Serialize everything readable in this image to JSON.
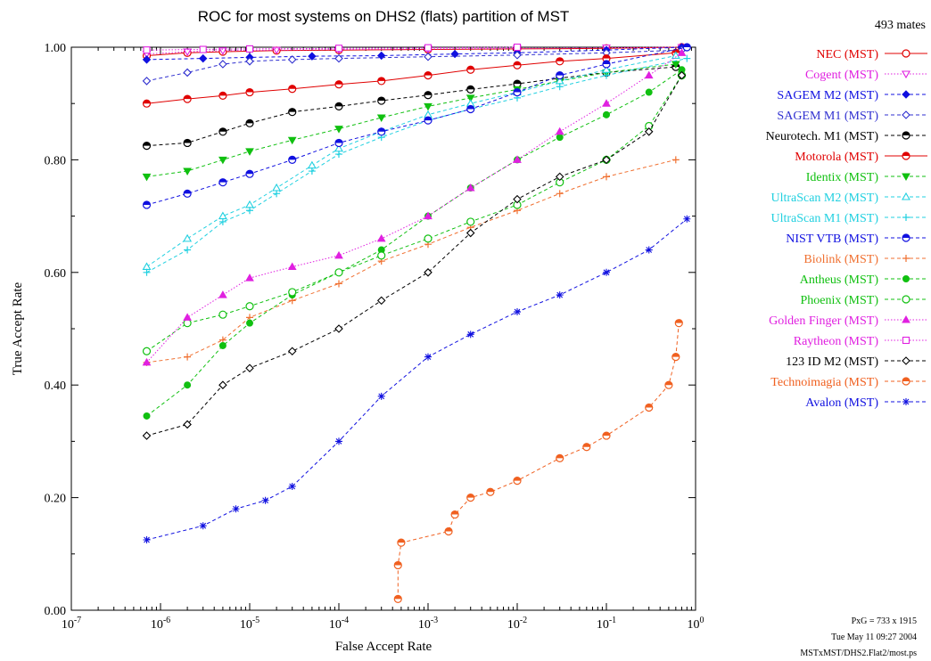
{
  "chart_data": {
    "type": "line",
    "title": "ROC for most systems on DHS2 (flats) partition of MST",
    "corner_note": "493 mates",
    "xlabel": "False Accept Rate",
    "ylabel": "True Accept Rate",
    "x_scale": "log",
    "xlim": [
      1e-07,
      1
    ],
    "ylim": [
      0,
      1
    ],
    "x_ticks": [
      {
        "value": 1e-07,
        "base": "10",
        "exp": "-7"
      },
      {
        "value": 1e-06,
        "base": "10",
        "exp": "-6"
      },
      {
        "value": 1e-05,
        "base": "10",
        "exp": "-5"
      },
      {
        "value": 0.0001,
        "base": "10",
        "exp": "-4"
      },
      {
        "value": 0.001,
        "base": "10",
        "exp": "-3"
      },
      {
        "value": 0.01,
        "base": "10",
        "exp": "-2"
      },
      {
        "value": 0.1,
        "base": "10",
        "exp": "-1"
      },
      {
        "value": 1,
        "base": "10",
        "exp": "0"
      }
    ],
    "y_ticks": [
      {
        "value": 0.0,
        "label": "0.00"
      },
      {
        "value": 0.2,
        "label": "0.20"
      },
      {
        "value": 0.4,
        "label": "0.40"
      },
      {
        "value": 0.6,
        "label": "0.60"
      },
      {
        "value": 0.8,
        "label": "0.80"
      },
      {
        "value": 1.0,
        "label": "1.00"
      }
    ],
    "legend_position": "right",
    "series": [
      {
        "name": "NEC (MST)",
        "color": "#e00000",
        "marker": "circle-open",
        "dash": "solid",
        "x": [
          7e-07,
          2e-06,
          5e-06,
          2e-05,
          0.0001,
          0.001,
          0.01,
          0.1,
          0.7
        ],
        "y": [
          0.985,
          0.99,
          0.992,
          0.994,
          0.995,
          0.996,
          0.997,
          0.998,
          1.0
        ]
      },
      {
        "name": "Cogent (MST)",
        "color": "#e020e0",
        "marker": "triangle-down-open",
        "dash": "dotted",
        "x": [
          7e-07,
          2e-06,
          5e-06,
          2e-05,
          0.0001,
          0.001,
          0.01,
          0.1,
          0.7
        ],
        "y": [
          0.988,
          0.992,
          0.994,
          0.995,
          0.996,
          0.997,
          0.998,
          0.999,
          1.0
        ]
      },
      {
        "name": "SAGEM M2 (MST)",
        "color": "#1010e0",
        "marker": "diamond-filled",
        "dash": "dashed",
        "x": [
          7e-07,
          3e-06,
          1e-05,
          5e-05,
          0.0003,
          0.002,
          0.01,
          0.1,
          0.7
        ],
        "y": [
          0.978,
          0.98,
          0.982,
          0.984,
          0.985,
          0.988,
          0.99,
          0.995,
          1.0
        ]
      },
      {
        "name": "SAGEM M1 (MST)",
        "color": "#3030d0",
        "marker": "diamond-open",
        "dash": "dashed",
        "x": [
          7e-07,
          2e-06,
          5e-06,
          1e-05,
          3e-05,
          0.0001,
          0.001,
          0.01,
          0.1,
          0.7
        ],
        "y": [
          0.94,
          0.955,
          0.97,
          0.975,
          0.978,
          0.98,
          0.983,
          0.986,
          0.99,
          0.995
        ]
      },
      {
        "name": "Neurotech. M1 (MST)",
        "color": "#000000",
        "marker": "circle-half",
        "dash": "dashed",
        "x": [
          7e-07,
          2e-06,
          5e-06,
          1e-05,
          3e-05,
          0.0001,
          0.0003,
          0.001,
          0.003,
          0.01,
          0.03,
          0.1,
          0.6
        ],
        "y": [
          0.825,
          0.83,
          0.85,
          0.865,
          0.885,
          0.895,
          0.905,
          0.915,
          0.925,
          0.935,
          0.945,
          0.955,
          0.965
        ]
      },
      {
        "name": "Motorola (MST)",
        "color": "#e00000",
        "marker": "circle-half",
        "dash": "solid",
        "x": [
          7e-07,
          2e-06,
          5e-06,
          1e-05,
          3e-05,
          0.0001,
          0.0003,
          0.001,
          0.003,
          0.01,
          0.03,
          0.1,
          0.6
        ],
        "y": [
          0.9,
          0.908,
          0.914,
          0.92,
          0.926,
          0.934,
          0.94,
          0.95,
          0.96,
          0.968,
          0.975,
          0.98,
          0.99
        ]
      },
      {
        "name": "Identix (MST)",
        "color": "#10c010",
        "marker": "triangle-down-filled",
        "dash": "dashed",
        "x": [
          7e-07,
          2e-06,
          5e-06,
          1e-05,
          3e-05,
          0.0001,
          0.0003,
          0.001,
          0.003,
          0.01,
          0.03,
          0.1,
          0.6
        ],
        "y": [
          0.77,
          0.78,
          0.8,
          0.815,
          0.835,
          0.855,
          0.875,
          0.895,
          0.91,
          0.925,
          0.94,
          0.955,
          0.97
        ]
      },
      {
        "name": "UltraScan M2 (MST)",
        "color": "#20d0e0",
        "marker": "triangle-up-open",
        "dash": "dashed",
        "x": [
          7e-07,
          2e-06,
          5e-06,
          1e-05,
          2e-05,
          5e-05,
          0.0001,
          0.0003,
          0.001,
          0.003,
          0.01,
          0.03,
          0.1,
          0.6
        ],
        "y": [
          0.61,
          0.66,
          0.7,
          0.72,
          0.75,
          0.79,
          0.82,
          0.85,
          0.88,
          0.9,
          0.92,
          0.94,
          0.96,
          0.985
        ]
      },
      {
        "name": "UltraScan M1 (MST)",
        "color": "#20d0e0",
        "marker": "plus",
        "dash": "dashed",
        "x": [
          7e-07,
          2e-06,
          5e-06,
          1e-05,
          2e-05,
          5e-05,
          0.0001,
          0.0003,
          0.001,
          0.003,
          0.01,
          0.03,
          0.1,
          0.8
        ],
        "y": [
          0.6,
          0.64,
          0.69,
          0.71,
          0.74,
          0.78,
          0.81,
          0.84,
          0.87,
          0.89,
          0.91,
          0.93,
          0.95,
          0.98
        ]
      },
      {
        "name": "NIST VTB (MST)",
        "color": "#1010e0",
        "marker": "circle-half",
        "dash": "dashed",
        "x": [
          7e-07,
          2e-06,
          5e-06,
          1e-05,
          3e-05,
          0.0001,
          0.0003,
          0.001,
          0.003,
          0.01,
          0.03,
          0.1,
          0.8
        ],
        "y": [
          0.72,
          0.74,
          0.76,
          0.775,
          0.8,
          0.83,
          0.85,
          0.87,
          0.89,
          0.92,
          0.95,
          0.97,
          1.0
        ]
      },
      {
        "name": "Biolink (MST)",
        "color": "#f07030",
        "marker": "plus",
        "dash": "dashed",
        "x": [
          7e-07,
          2e-06,
          5e-06,
          1e-05,
          3e-05,
          0.0001,
          0.0003,
          0.001,
          0.003,
          0.01,
          0.03,
          0.1,
          0.6
        ],
        "y": [
          0.44,
          0.45,
          0.48,
          0.52,
          0.55,
          0.58,
          0.62,
          0.65,
          0.68,
          0.71,
          0.74,
          0.77,
          0.8
        ]
      },
      {
        "name": "Antheus (MST)",
        "color": "#10c010",
        "marker": "circle-filled",
        "dash": "dashed",
        "x": [
          7e-07,
          2e-06,
          5e-06,
          1e-05,
          3e-05,
          0.0001,
          0.0003,
          0.001,
          0.003,
          0.01,
          0.03,
          0.1,
          0.3,
          0.7
        ],
        "y": [
          0.345,
          0.4,
          0.47,
          0.51,
          0.56,
          0.6,
          0.64,
          0.7,
          0.75,
          0.8,
          0.84,
          0.88,
          0.92,
          0.96
        ]
      },
      {
        "name": "Phoenix (MST)",
        "color": "#10c010",
        "marker": "circle-open",
        "dash": "dashed",
        "x": [
          7e-07,
          2e-06,
          5e-06,
          1e-05,
          3e-05,
          0.0001,
          0.0003,
          0.001,
          0.003,
          0.01,
          0.03,
          0.1,
          0.3,
          0.7
        ],
        "y": [
          0.46,
          0.51,
          0.525,
          0.54,
          0.565,
          0.6,
          0.63,
          0.66,
          0.69,
          0.72,
          0.76,
          0.8,
          0.86,
          0.95
        ]
      },
      {
        "name": "Golden Finger (MST)",
        "color": "#e020e0",
        "marker": "triangle-up-filled",
        "dash": "dotted",
        "x": [
          7e-07,
          2e-06,
          5e-06,
          1e-05,
          3e-05,
          0.0001,
          0.0003,
          0.001,
          0.003,
          0.01,
          0.03,
          0.1,
          0.3,
          0.7
        ],
        "y": [
          0.44,
          0.52,
          0.56,
          0.59,
          0.61,
          0.63,
          0.66,
          0.7,
          0.75,
          0.8,
          0.85,
          0.9,
          0.95,
          0.99
        ]
      },
      {
        "name": "Raytheon (MST)",
        "color": "#e020e0",
        "marker": "square-open",
        "dash": "dotted",
        "x": [
          7e-07,
          3e-06,
          1e-05,
          0.0001,
          0.001,
          0.01
        ],
        "y": [
          0.995,
          0.996,
          0.997,
          0.998,
          0.999,
          1.0
        ]
      },
      {
        "name": "123 ID M2 (MST)",
        "color": "#000000",
        "marker": "diamond-open",
        "dash": "dashed",
        "x": [
          7e-07,
          2e-06,
          5e-06,
          1e-05,
          3e-05,
          0.0001,
          0.0003,
          0.001,
          0.003,
          0.01,
          0.03,
          0.1,
          0.3,
          0.7
        ],
        "y": [
          0.31,
          0.33,
          0.4,
          0.43,
          0.46,
          0.5,
          0.55,
          0.6,
          0.67,
          0.73,
          0.77,
          0.8,
          0.85,
          0.95
        ]
      },
      {
        "name": "Technoimagia (MST)",
        "color": "#f06020",
        "marker": "circle-half",
        "dash": "dashed",
        "x": [
          0.00046,
          0.00046,
          0.0005,
          0.0017,
          0.002,
          0.003,
          0.005,
          0.01,
          0.03,
          0.06,
          0.1,
          0.3,
          0.5,
          0.6,
          0.65
        ],
        "y": [
          0.02,
          0.08,
          0.12,
          0.14,
          0.17,
          0.2,
          0.21,
          0.23,
          0.27,
          0.29,
          0.31,
          0.36,
          0.4,
          0.45,
          0.51
        ]
      },
      {
        "name": "Avalon (MST)",
        "color": "#1010e0",
        "marker": "star",
        "dash": "dashed",
        "x": [
          7e-07,
          3e-06,
          7e-06,
          1.5e-05,
          3e-05,
          0.0001,
          0.0003,
          0.001,
          0.003,
          0.01,
          0.03,
          0.1,
          0.3,
          0.8
        ],
        "y": [
          0.125,
          0.15,
          0.18,
          0.195,
          0.22,
          0.3,
          0.38,
          0.45,
          0.49,
          0.53,
          0.56,
          0.6,
          0.64,
          0.695
        ]
      }
    ]
  },
  "footer": {
    "line1": "PxG = 733 x 1915",
    "line2": "Tue May 11 09:27 2004",
    "line3": "MSTxMST/DHS2.Flat2/most.ps"
  }
}
